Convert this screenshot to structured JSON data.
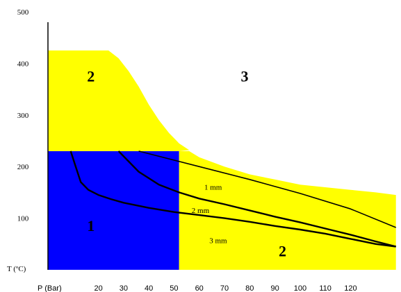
{
  "chart_data": {
    "type": "area",
    "ylabel": "T (ºC)",
    "xlabel": "P (Bar)",
    "ylim": [
      0,
      500
    ],
    "xlim": [
      0,
      140
    ],
    "y_ticks": [
      "100",
      "200",
      "300",
      "400",
      "500"
    ],
    "y_tick_values": [
      100,
      200,
      300,
      400,
      500
    ],
    "x_ticks": [
      "20",
      "30",
      "40",
      "50",
      "60",
      "70",
      "80",
      "90",
      "100",
      "110",
      "120"
    ],
    "x_tick_values": [
      20,
      30,
      40,
      50,
      60,
      70,
      80,
      90,
      100,
      110,
      120
    ],
    "colors": {
      "region1": "#0000ff",
      "region2": "#ffff00",
      "outline": "#000000"
    },
    "regions": [
      {
        "label": "1",
        "color": "#0000ff",
        "polygon": [
          [
            0,
            0
          ],
          [
            0,
            230
          ],
          [
            52,
            230
          ],
          [
            52,
            0
          ]
        ],
        "label_at": [
          17,
          75
        ]
      },
      {
        "label": "2",
        "color": "#ffff00",
        "polygon": [
          [
            0,
            230
          ],
          [
            0,
            425
          ],
          [
            24,
            425
          ],
          [
            28,
            410
          ],
          [
            32,
            385
          ],
          [
            36,
            355
          ],
          [
            40,
            320
          ],
          [
            44,
            290
          ],
          [
            48,
            265
          ],
          [
            52,
            245
          ],
          [
            56,
            232
          ],
          [
            52,
            230
          ]
        ],
        "label_at": [
          17,
          365
        ]
      },
      {
        "label": "2",
        "color": "#ffff00",
        "polygon": [
          [
            52,
            0
          ],
          [
            52,
            230
          ],
          [
            56,
            230
          ],
          [
            60,
            218
          ],
          [
            70,
            200
          ],
          [
            80,
            185
          ],
          [
            90,
            175
          ],
          [
            100,
            165
          ],
          [
            110,
            160
          ],
          [
            120,
            155
          ],
          [
            130,
            150
          ],
          [
            138,
            145
          ],
          [
            138,
            0
          ]
        ],
        "label_at": [
          93,
          26
        ]
      },
      {
        "label": "3",
        "color": "#ffffff",
        "polygon": [],
        "label_at": [
          78,
          365
        ]
      }
    ],
    "series": [
      {
        "name": "1 mm",
        "label_at": [
          62,
          155
        ],
        "x": [
          36,
          60,
          80,
          100,
          120,
          138
        ],
        "y": [
          230,
          200,
          175,
          148,
          118,
          82
        ]
      },
      {
        "name": "2 mm",
        "label_at": [
          57,
          110
        ],
        "x": [
          28,
          36,
          44,
          52,
          60,
          70,
          80,
          90,
          100,
          110,
          120,
          130,
          138
        ],
        "y": [
          230,
          190,
          165,
          150,
          138,
          127,
          115,
          103,
          92,
          80,
          68,
          55,
          45
        ]
      },
      {
        "name": "3 mm",
        "label_at": [
          64,
          52
        ],
        "x": [
          9,
          11,
          13,
          16,
          20,
          25,
          30,
          40,
          50,
          60,
          70,
          80,
          90,
          100,
          110,
          120,
          130,
          138
        ],
        "y": [
          230,
          200,
          170,
          155,
          145,
          137,
          130,
          120,
          112,
          106,
          100,
          93,
          85,
          78,
          70,
          60,
          50,
          45
        ]
      }
    ]
  }
}
